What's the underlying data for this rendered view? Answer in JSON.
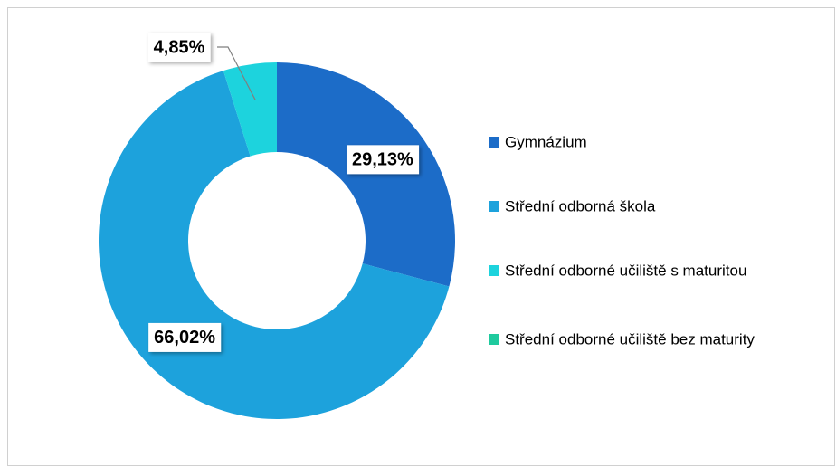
{
  "chart_data": {
    "type": "donut",
    "categories": [
      "Gymnázium",
      "Střední odborná škola",
      "Střední odborné učiliště s maturitou",
      "Střední odborné učiliště bez maturity"
    ],
    "values": [
      29.13,
      66.02,
      4.85,
      0
    ],
    "value_labels": [
      "29,13%",
      "66,02%",
      "4,85%",
      null
    ],
    "colors": [
      "#1c6cc8",
      "#1da2dc",
      "#1dd3dd",
      "#1fca9e"
    ],
    "legend": "right"
  }
}
